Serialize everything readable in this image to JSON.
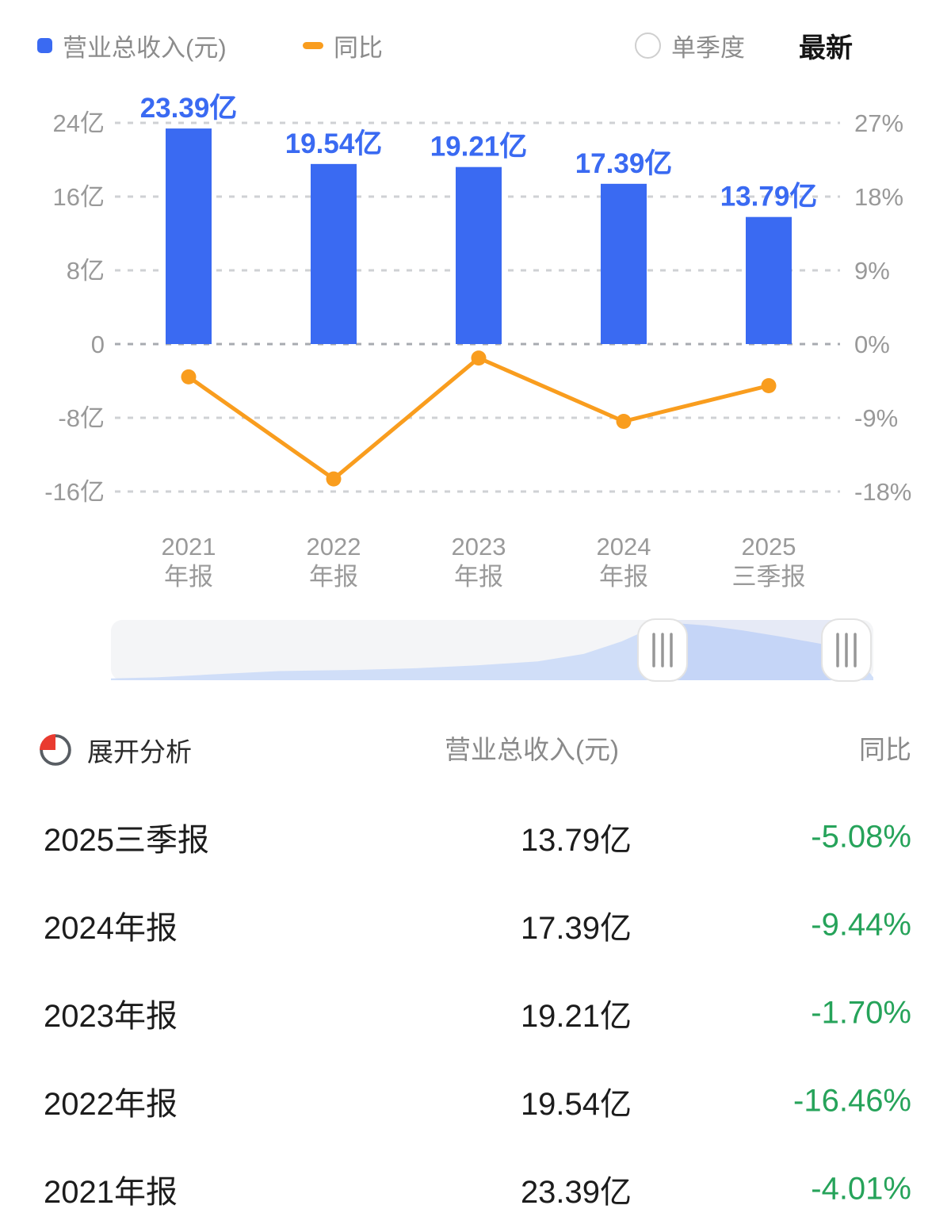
{
  "accent_colors": {
    "bar_blue": "#3a6af2",
    "line_orange": "#f99d1e",
    "down_green": "#26a35a",
    "axis_gray": "#999999",
    "pie_icon_red": "#e93b30"
  },
  "legend": {
    "revenue_label": "营业总收入(元)",
    "yoy_label": "同比"
  },
  "controls": {
    "single_quarter_label": "单季度",
    "latest_label": "最新"
  },
  "chart_data": {
    "type": "bar+line",
    "categories": [
      [
        "2021",
        "年报"
      ],
      [
        "2022",
        "年报"
      ],
      [
        "2023",
        "年报"
      ],
      [
        "2024",
        "年报"
      ],
      [
        "2025",
        "三季报"
      ]
    ],
    "series": [
      {
        "name": "营业总收入(元)",
        "type": "bar",
        "unit": "亿",
        "values": [
          23.39,
          19.54,
          19.21,
          17.39,
          13.79
        ],
        "labels": [
          "23.39亿",
          "19.54亿",
          "19.21亿",
          "17.39亿",
          "13.79亿"
        ],
        "color": "#3a6af2"
      },
      {
        "name": "同比",
        "type": "line",
        "unit": "%",
        "values": [
          -4.01,
          -16.46,
          -1.7,
          -9.44,
          -5.08
        ],
        "color": "#f99d1e"
      }
    ],
    "left_axis": {
      "ticks": [
        "24亿",
        "16亿",
        "8亿",
        "0",
        "-8亿",
        "-16亿"
      ],
      "values": [
        24,
        16,
        8,
        0,
        -8,
        -16
      ]
    },
    "right_axis": {
      "ticks": [
        "27%",
        "18%",
        "9%",
        "0%",
        "-9%",
        "-18%"
      ],
      "values": [
        27,
        18,
        9,
        0,
        -9,
        -18
      ]
    },
    "grid": "dashed",
    "legend_position": "top"
  },
  "table": {
    "headers": {
      "expand": "展开分析",
      "revenue": "营业总收入(元)",
      "yoy": "同比"
    },
    "rows": [
      {
        "period": "2025三季报",
        "revenue": "13.79亿",
        "yoy": "-5.08%"
      },
      {
        "period": "2024年报",
        "revenue": "17.39亿",
        "yoy": "-9.44%"
      },
      {
        "period": "2023年报",
        "revenue": "19.21亿",
        "yoy": "-1.70%"
      },
      {
        "period": "2022年报",
        "revenue": "19.54亿",
        "yoy": "-16.46%"
      },
      {
        "period": "2021年报",
        "revenue": "23.39亿",
        "yoy": "-4.01%"
      }
    ]
  }
}
